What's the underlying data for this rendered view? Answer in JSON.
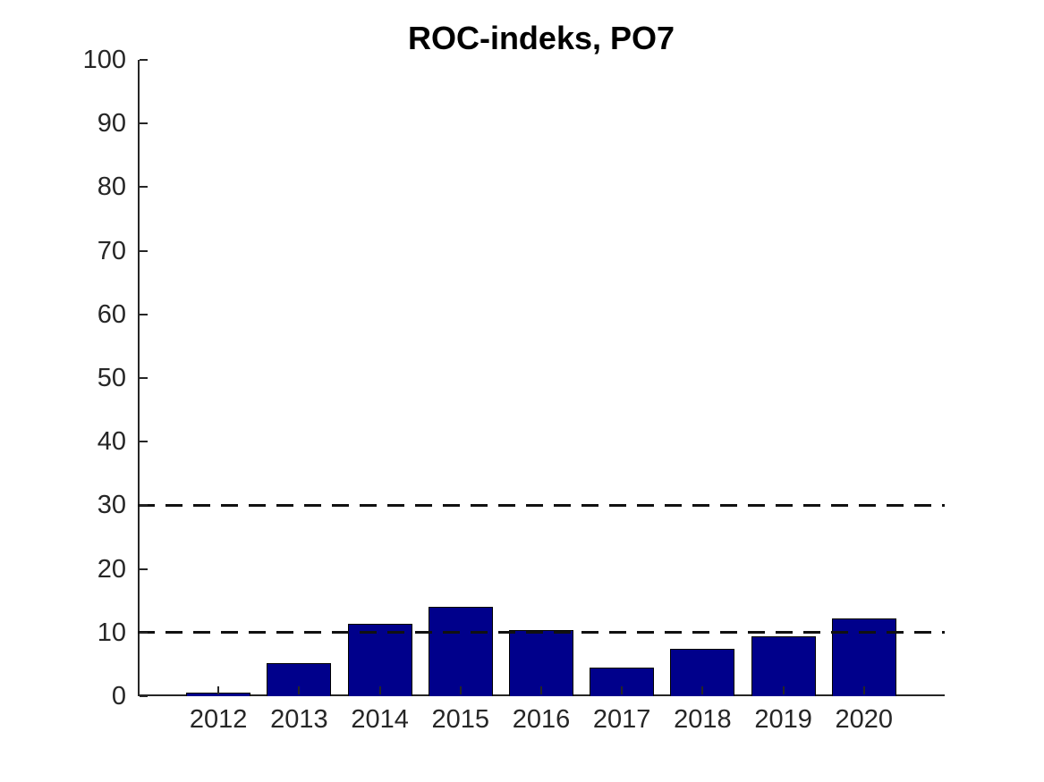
{
  "chart_data": {
    "type": "bar",
    "title": "ROC-indeks, PO7",
    "categories": [
      "2012",
      "2013",
      "2014",
      "2015",
      "2016",
      "2017",
      "2018",
      "2019",
      "2020"
    ],
    "values": [
      0.5,
      5.2,
      11.4,
      14.0,
      10.4,
      4.5,
      7.4,
      9.4,
      12.2
    ],
    "xlabel": "",
    "ylabel": "",
    "ylim": [
      0,
      100
    ],
    "yticks": [
      0,
      10,
      20,
      30,
      40,
      50,
      60,
      70,
      80,
      90,
      100
    ],
    "reference_lines": [
      {
        "y": 10,
        "style": "dashed",
        "color": "#111111"
      },
      {
        "y": 30,
        "style": "dashed",
        "color": "#111111"
      }
    ],
    "grid": false,
    "legend": null,
    "colors": {
      "bar_fill": "#00008B",
      "bar_edge": "#000000",
      "axis": "#262626",
      "tick_label": "#262626",
      "title": "#000000",
      "background": "#FFFFFF"
    }
  }
}
